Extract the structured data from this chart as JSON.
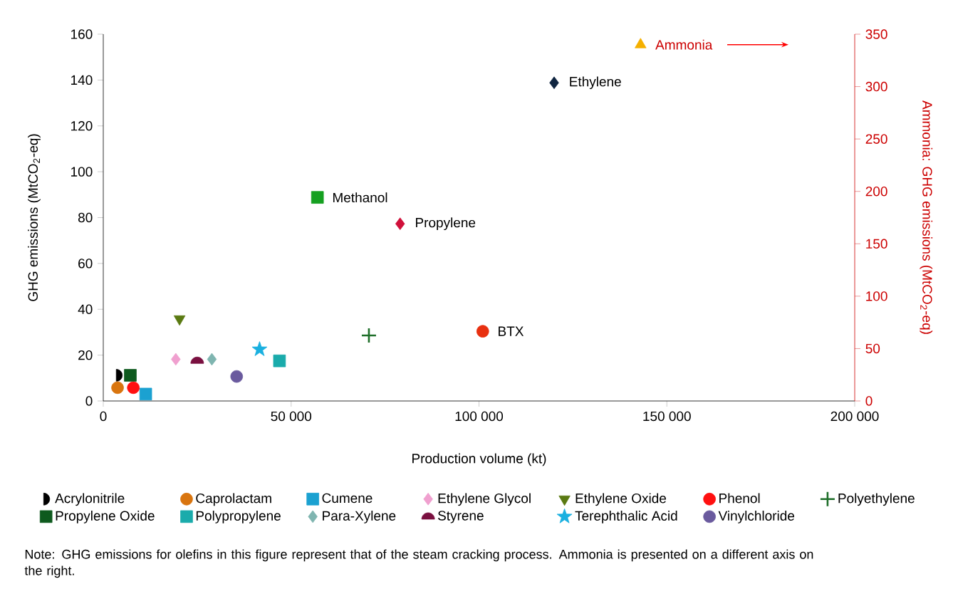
{
  "chart_data": {
    "type": "scatter",
    "xlabel": "Production volume (kt)",
    "ylabel": "GHG emissions (MtCO$_{2}$-eq)",
    "y2label": "Ammonia: GHG emissions (MtCO$_{2}$-eq)",
    "xlim": [
      0,
      200000
    ],
    "xticks": [
      0,
      {
        "value": 50000,
        "label": "50 000"
      },
      {
        "value": 100000,
        "label": "100 000"
      },
      {
        "value": 150000,
        "label": "150 000"
      },
      {
        "value": 200000,
        "label": "200 000"
      }
    ],
    "ylim": [
      0,
      160
    ],
    "yticks": [
      0,
      20,
      40,
      60,
      80,
      100,
      120,
      140,
      160
    ],
    "y2lim": [
      0,
      350
    ],
    "y2ticks": [
      0,
      50,
      100,
      150,
      200,
      250,
      300,
      350
    ],
    "legend": "bottom",
    "annotations": [
      {
        "text": "Methanol",
        "x": 57000,
        "y": 88.8
      },
      {
        "text": "Propylene",
        "x": 79000,
        "y": 77.3
      },
      {
        "text": "BTX",
        "x": 101000,
        "y": 30.4
      },
      {
        "text": "Ethylene",
        "x": 120000,
        "y": 138.8
      },
      "Note: GHG emissions for olefins in this figure represent that of the steam cracking process. Ammonia is presented on a different axis on the right."
    ],
    "series": [
      {
        "name": "Acrylonitrile",
        "color": "#000000",
        "marker": "halfcircle-right",
        "x": [
          4100
        ],
        "values": [
          11.2
        ]
      },
      {
        "name": "Caprolactam",
        "color": "#d9750f",
        "marker": "circle",
        "x": [
          3800
        ],
        "values": [
          5.8
        ]
      },
      {
        "name": "Cumene",
        "color": "#1ba1d1",
        "marker": "square",
        "x": [
          11300
        ],
        "values": [
          3
        ]
      },
      {
        "name": "Ethylene Glycol",
        "color": "#f0a0cf",
        "marker": "diamond",
        "x": [
          19300
        ],
        "values": [
          18.2
        ]
      },
      {
        "name": "Ethylene Oxide",
        "color": "#5a7a12",
        "marker": "triangle-down",
        "x": [
          20300
        ],
        "values": [
          35.8
        ]
      },
      {
        "name": "Phenol",
        "color": "#ff1010",
        "marker": "circle",
        "x": [
          8000
        ],
        "values": [
          5.8
        ]
      },
      {
        "name": "Polyethylene",
        "color": "#1f6f2a",
        "marker": "cross",
        "x": [
          70700
        ],
        "values": [
          28.6
        ]
      },
      {
        "name": "Propylene Oxide",
        "color": "#0e5a1e",
        "marker": "square",
        "x": [
          7200
        ],
        "values": [
          11.2
        ]
      },
      {
        "name": "Polypropylene",
        "color": "#1aabab",
        "marker": "square",
        "x": [
          46900
        ],
        "values": [
          17.5
        ]
      },
      {
        "name": "Para-Xylene",
        "color": "#7fb5b0",
        "marker": "diamond",
        "x": [
          28900
        ],
        "values": [
          18.2
        ]
      },
      {
        "name": "Styrene",
        "color": "#7a1040",
        "marker": "halfcircle",
        "x": [
          25000
        ],
        "values": [
          17.5
        ]
      },
      {
        "name": "Terephthalic Acid",
        "color": "#1ab0e0",
        "marker": "star",
        "x": [
          41600
        ],
        "values": [
          22.5
        ]
      },
      {
        "name": "Vinylchloride",
        "color": "#6a5a9e",
        "marker": "circle",
        "x": [
          35500
        ],
        "values": [
          10.7
        ]
      },
      {
        "color": "#15a020",
        "marker": "square",
        "x": [
          57000
        ],
        "values": [
          88.8
        ]
      },
      {
        "color": "#d0103a",
        "marker": "diamond",
        "x": [
          79000
        ],
        "values": [
          77.3
        ]
      },
      {
        "color": "#e83010",
        "marker": "circle",
        "x": [
          101000
        ],
        "values": [
          30.4
        ]
      },
      {
        "color": "#0f2540",
        "marker": "diamond",
        "x": [
          120000
        ],
        "values": [
          138.8
        ]
      },
      {
        "name": "Ammonia",
        "color": "#f5b000",
        "marker": "triangle",
        "axis": "y2",
        "x": [
          143000
        ],
        "values": [
          340
        ]
      }
    ]
  }
}
